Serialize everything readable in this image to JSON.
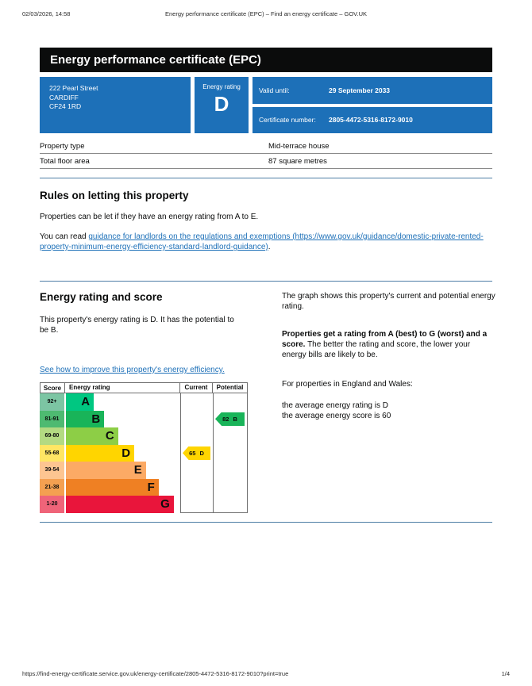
{
  "page_header": {
    "datetime": "02/03/2026, 14:58",
    "title": "Energy performance certificate (EPC) – Find an energy certificate – GOV.UK"
  },
  "page_footer": {
    "url": "https://find-energy-certificate.service.gov.uk/energy-certificate/2805-4472-5316-8172-9010?print=true",
    "page_indicator": "1/4"
  },
  "colors": {
    "govuk_blue": "#1d70b8",
    "link_blue": "#1d70b8",
    "divider_blue": "#4d7da5",
    "title_bar_black": "#0b0c0c"
  },
  "title_bar": {
    "text": "Energy performance certificate (EPC)"
  },
  "summary_panel": {
    "address_lines": [
      "222 Pearl Street",
      "CARDIFF",
      "CF24 1RD"
    ],
    "energy_rating_label": "Energy rating",
    "energy_rating_value": "D",
    "valid_until_label": "Valid until:",
    "valid_until_value": "29 September 2033",
    "certificate_number_label": "Certificate number:",
    "certificate_number_value": "2805-4472-5316-8172-9010",
    "panel_color": "#1d70b8"
  },
  "property_table": {
    "rows": [
      {
        "label": "Property type",
        "value": "Mid-terrace house"
      },
      {
        "label": "Total floor area",
        "value": "87 square metres"
      }
    ]
  },
  "rules_section": {
    "heading": "Rules on letting this property",
    "paragraph1": "Properties can be let if they have an energy rating from A to E.",
    "paragraph2_prefix": "You can read ",
    "link_text": "guidance for landlords on the regulations and exemptions (https://www.gov.uk/guidance/domestic-private-rented-property-minimum-energy-efficiency-standard-landlord-guidance)",
    "paragraph2_suffix": "."
  },
  "rating_section": {
    "heading": "Energy rating and score",
    "paragraph1": "This property's energy rating is D. It has the potential to be B.",
    "link_text": "See how to improve this property's energy efficiency.",
    "right_paragraph1": "The graph shows this property's current and potential energy rating.",
    "right_paragraph2_bold": "Properties get a rating from A (best) to G (worst) and a score.",
    "right_paragraph2_rest": " The better the rating and score, the lower your energy bills are likely to be.",
    "right_paragraph3": "For properties in England and Wales:",
    "right_line1": "the average energy rating is D",
    "right_line2": "the average energy score is 60"
  },
  "chart_data": {
    "type": "bar",
    "title": "Energy rating and score graph",
    "headers": [
      "Score",
      "Energy rating",
      "Current",
      "Potential"
    ],
    "bands": [
      {
        "score_range": "92+",
        "letter": "A",
        "color": "#00c781",
        "score_bg": "#7cc5a3",
        "bar_width_pct": 24
      },
      {
        "score_range": "81-91",
        "letter": "B",
        "color": "#19b459",
        "score_bg": "#4eba71",
        "bar_width_pct": 33
      },
      {
        "score_range": "69-80",
        "letter": "C",
        "color": "#8dce46",
        "score_bg": "#b3da82",
        "bar_width_pct": 45
      },
      {
        "score_range": "55-68",
        "letter": "D",
        "color": "#ffd500",
        "score_bg": "#ffe664",
        "bar_width_pct": 59
      },
      {
        "score_range": "39-54",
        "letter": "E",
        "color": "#fcaa65",
        "score_bg": "#fdc591",
        "bar_width_pct": 69
      },
      {
        "score_range": "21-38",
        "letter": "F",
        "color": "#ef8023",
        "score_bg": "#f4a051",
        "bar_width_pct": 80
      },
      {
        "score_range": "1-20",
        "letter": "G",
        "color": "#e9153b",
        "score_bg": "#ef6479",
        "bar_width_pct": 93
      }
    ],
    "current": {
      "score": 65,
      "letter": "D",
      "band": "D",
      "color": "#ffd500"
    },
    "potential": {
      "score": 82,
      "letter": "B",
      "band": "B",
      "color": "#19b459"
    }
  }
}
